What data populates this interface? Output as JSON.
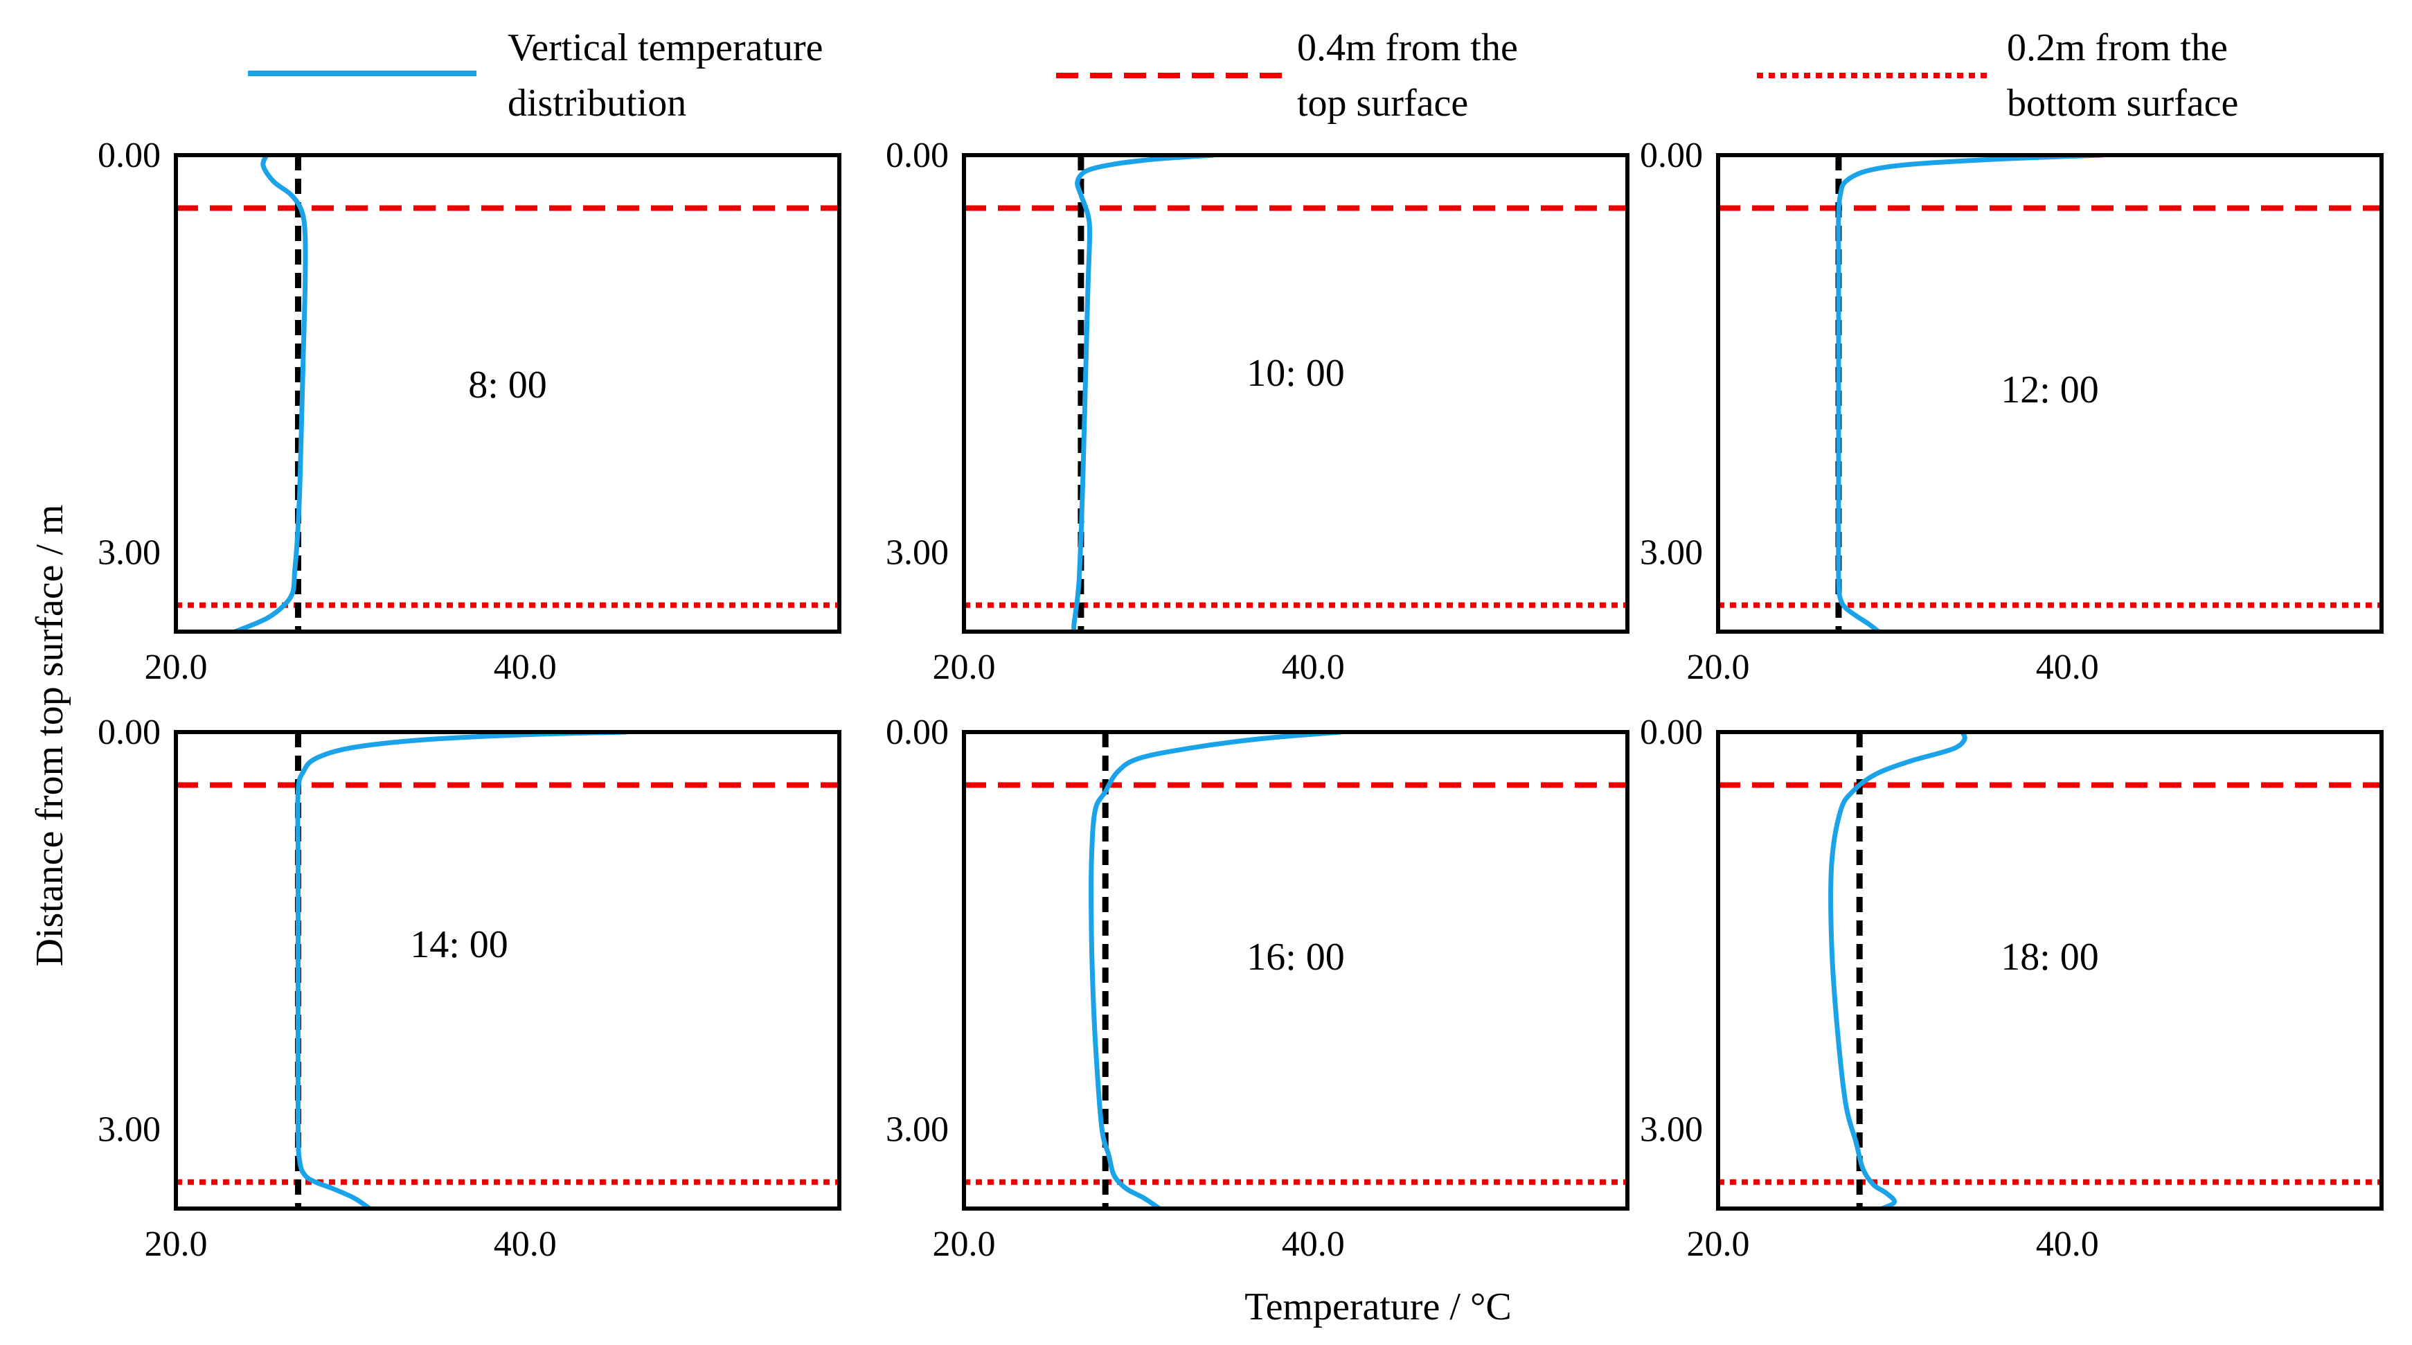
{
  "chart_data": {
    "type": "line",
    "xlabel": "Temperature / °C",
    "ylabel": "Distance from top surface / m",
    "xlim": [
      20,
      58
    ],
    "ylim": [
      0,
      3.6
    ],
    "x_ticks": [
      "20.0",
      "40.0"
    ],
    "y_ticks": [
      "0.00",
      "3.00"
    ],
    "legend": [
      {
        "label_line1": "Vertical temperature",
        "label_line2": "distribution",
        "style": "solid",
        "color": "#1aa3e8"
      },
      {
        "label_line1": "0.4m from the",
        "label_line2": "top surface",
        "style": "dashed",
        "color": "#ee0000"
      },
      {
        "label_line1": "0.2m from the",
        "label_line2": "bottom surface",
        "style": "dotted",
        "color": "#ee0000"
      }
    ],
    "reference_depths": {
      "top_surface_line": 0.4,
      "bottom_surface_line": 3.4
    },
    "panels": [
      {
        "title": "8: 00",
        "vline": 27.0,
        "line_x": [
          25.2,
          25.0,
          25.6,
          26.6,
          27.2,
          27.4,
          27.4,
          27.3,
          27.2,
          27.1,
          27.0,
          26.9,
          26.8,
          26.7,
          26.2,
          25.2,
          23.4
        ],
        "line_y": [
          0.0,
          0.08,
          0.2,
          0.3,
          0.42,
          0.6,
          1.0,
          1.5,
          2.0,
          2.5,
          2.8,
          3.0,
          3.15,
          3.3,
          3.4,
          3.5,
          3.6
        ]
      },
      {
        "title": "10: 00",
        "vline": 26.7,
        "line_x": [
          34.3,
          31.0,
          28.5,
          27.0,
          26.5,
          26.7,
          27.1,
          27.2,
          27.1,
          27.0,
          26.9,
          26.8,
          26.7,
          26.6,
          26.5,
          26.4,
          26.3,
          26.3
        ],
        "line_y": [
          0.0,
          0.03,
          0.07,
          0.12,
          0.2,
          0.3,
          0.45,
          0.6,
          1.0,
          1.5,
          2.0,
          2.5,
          2.9,
          3.2,
          3.35,
          3.45,
          3.55,
          3.6
        ]
      },
      {
        "title": "12: 00",
        "vline": 26.9,
        "line_x": [
          42.0,
          36.0,
          31.0,
          28.5,
          27.3,
          27.0,
          26.9,
          26.9,
          26.9,
          26.9,
          26.9,
          27.0,
          27.3,
          27.9,
          28.6,
          29.2
        ],
        "line_y": [
          0.0,
          0.03,
          0.07,
          0.12,
          0.2,
          0.3,
          0.45,
          0.8,
          1.5,
          2.5,
          3.2,
          3.35,
          3.42,
          3.48,
          3.54,
          3.6
        ]
      },
      {
        "title": "14: 00",
        "vline": 27.0,
        "line_x": [
          45.8,
          40.0,
          34.0,
          30.0,
          28.0,
          27.3,
          27.0,
          27.0,
          27.0,
          27.0,
          27.1,
          27.4,
          28.0,
          29.0,
          30.2,
          31.1
        ],
        "line_y": [
          0.0,
          0.02,
          0.06,
          0.12,
          0.2,
          0.3,
          0.45,
          1.0,
          2.0,
          3.0,
          3.25,
          3.35,
          3.4,
          3.45,
          3.52,
          3.6
        ]
      },
      {
        "title": "16: 00",
        "vline": 28.1,
        "line_x": [
          41.6,
          37.0,
          33.0,
          30.0,
          28.8,
          28.1,
          27.5,
          27.3,
          27.3,
          27.4,
          27.6,
          27.9,
          28.3,
          28.6,
          29.3,
          30.3,
          31.2
        ],
        "line_y": [
          0.0,
          0.05,
          0.12,
          0.2,
          0.3,
          0.45,
          0.6,
          1.0,
          1.5,
          2.0,
          2.5,
          3.0,
          3.2,
          3.35,
          3.45,
          3.52,
          3.6
        ]
      },
      {
        "title": "18: 00",
        "vline": 28.1,
        "line_x": [
          34.0,
          34.1,
          33.4,
          31.0,
          29.0,
          27.7,
          27.0,
          26.5,
          26.5,
          26.8,
          27.3,
          27.9,
          28.3,
          28.9,
          29.6,
          30.1,
          29.4
        ],
        "line_y": [
          0.0,
          0.06,
          0.13,
          0.22,
          0.32,
          0.45,
          0.6,
          1.0,
          1.6,
          2.2,
          2.8,
          3.1,
          3.3,
          3.42,
          3.48,
          3.55,
          3.6
        ]
      }
    ]
  }
}
